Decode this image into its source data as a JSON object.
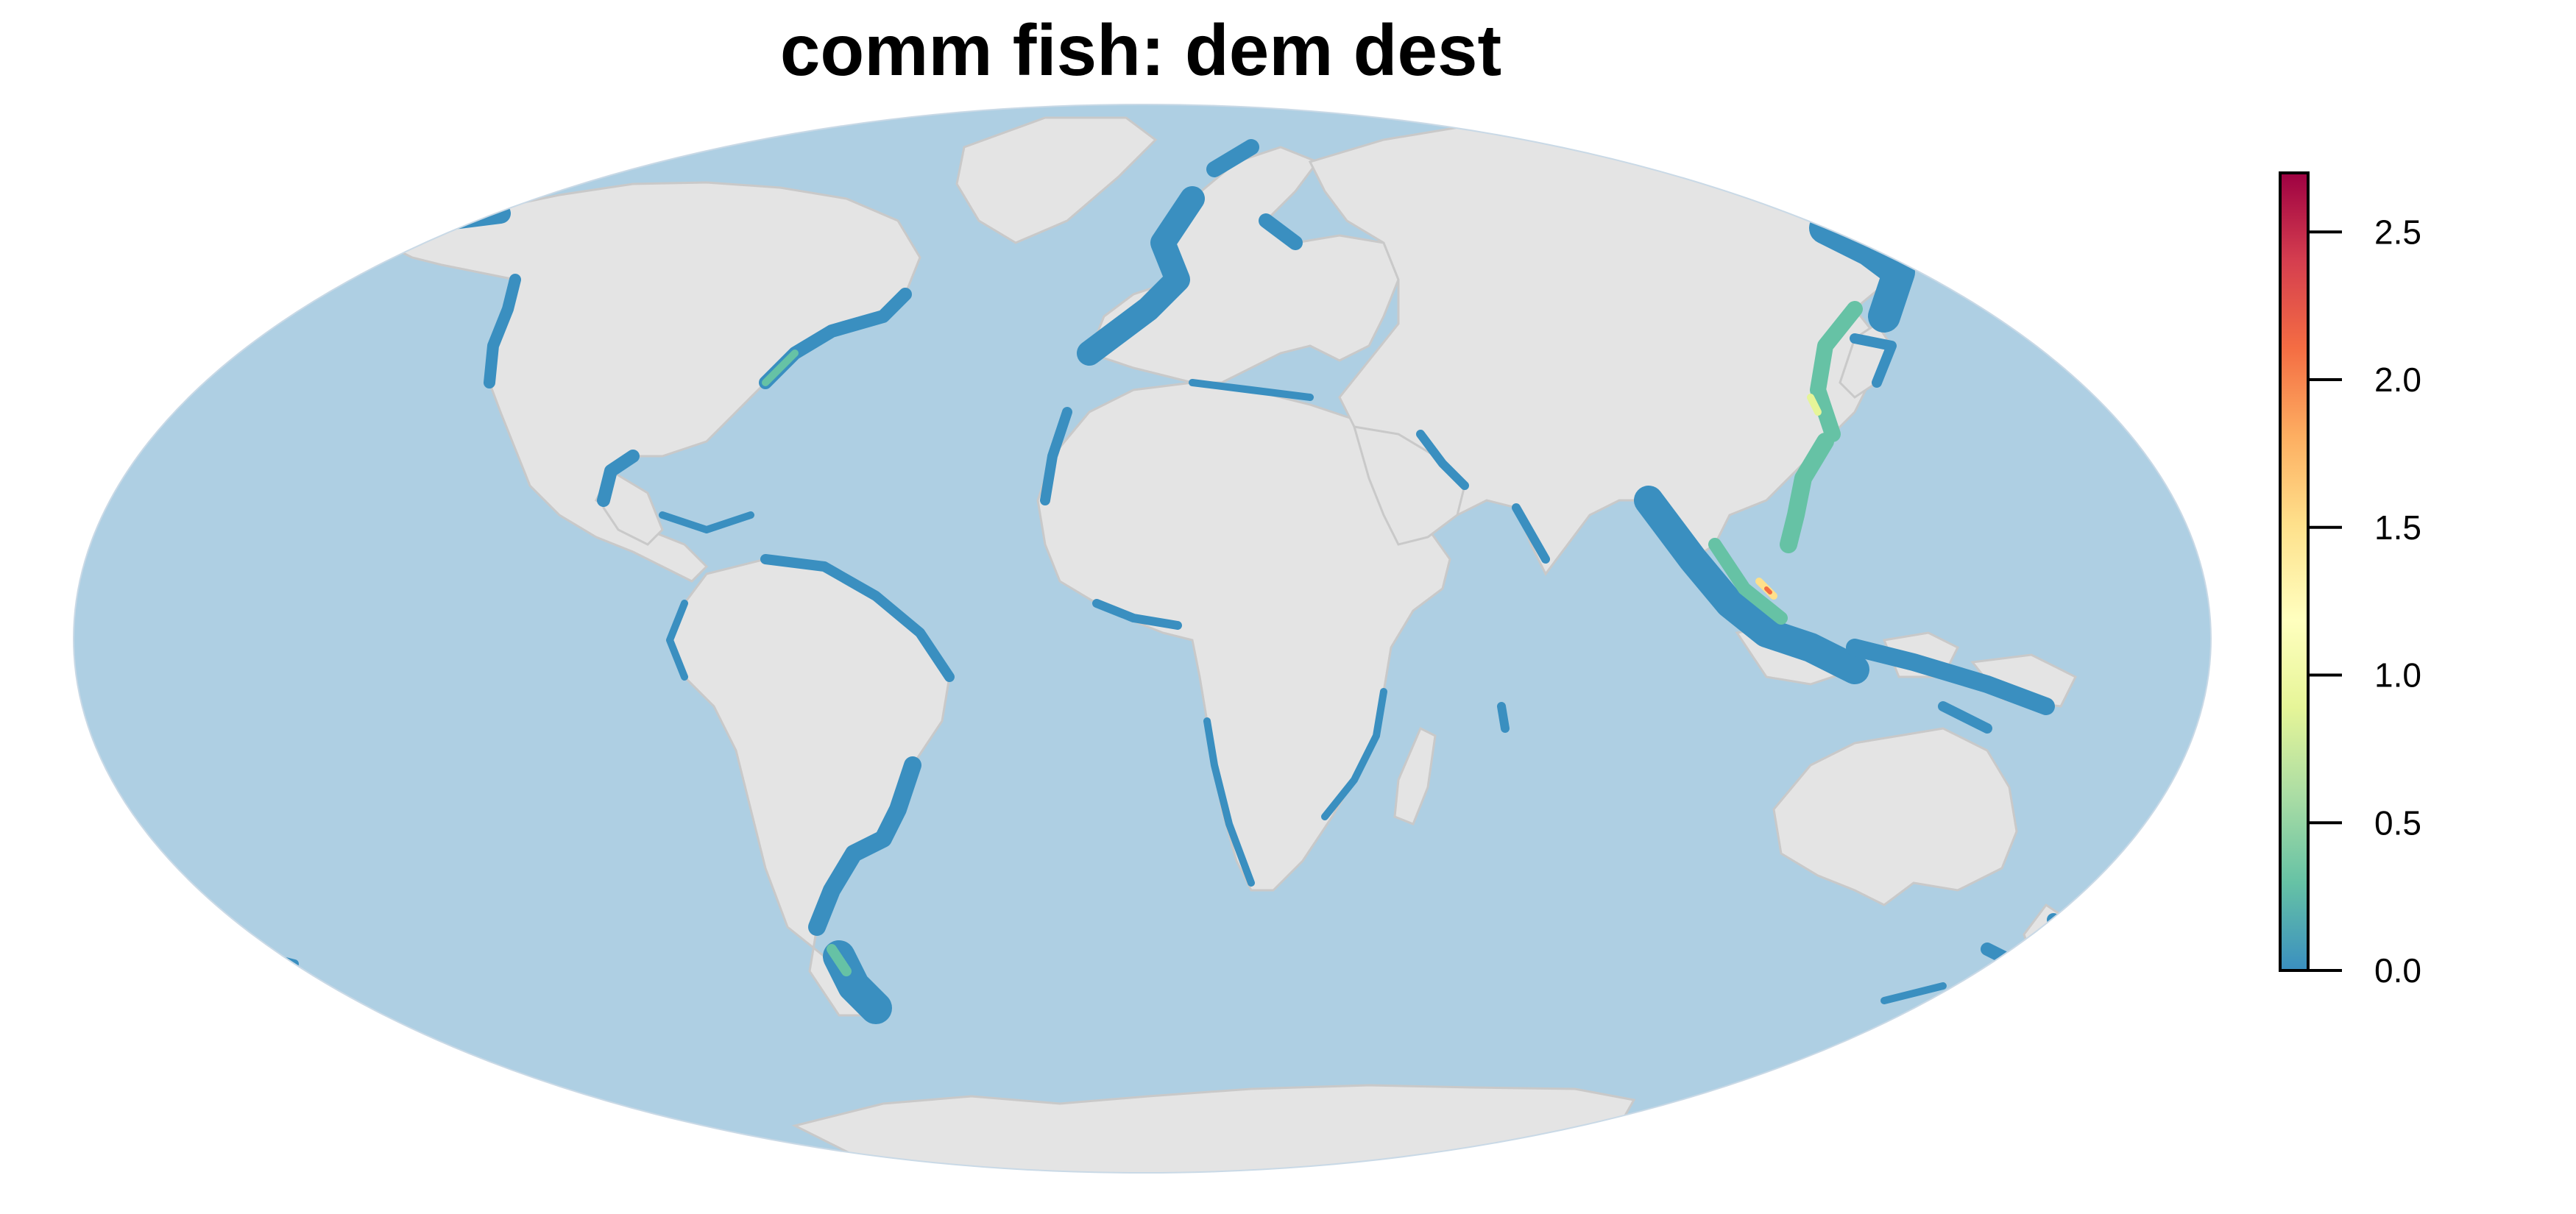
{
  "title": "comm fish: dem dest",
  "colors": {
    "ocean": "#aecfe3",
    "land": "#e4e4e4",
    "borders": "#c9c9c9",
    "low_value": "#3a8fc0",
    "background": "#ffffff"
  },
  "legend": {
    "min": 0.0,
    "max": 2.7,
    "ticks": [
      "0.0",
      "0.5",
      "1.0",
      "1.5",
      "2.0",
      "2.5"
    ],
    "tick_values": [
      0.0,
      0.5,
      1.0,
      1.5,
      2.0,
      2.5
    ],
    "palette": [
      "#3a8fc0",
      "#66c2a5",
      "#abdda4",
      "#e6f598",
      "#ffffbf",
      "#fee08b",
      "#fdae61",
      "#f46d43",
      "#d53e4f",
      "#9e0142"
    ]
  },
  "projection": "Mollweide"
}
